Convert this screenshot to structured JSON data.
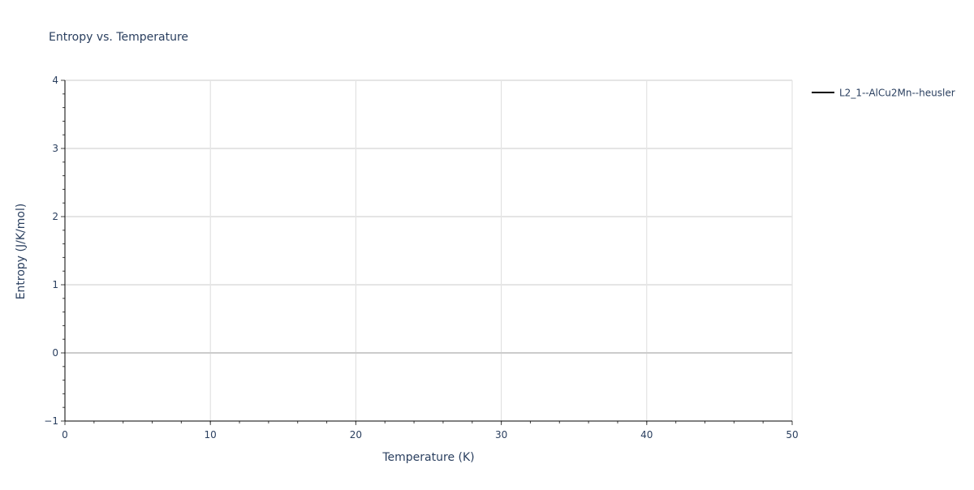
{
  "chart_data": {
    "type": "line",
    "title": "Entropy vs. Temperature",
    "xlabel": "Temperature (K)",
    "ylabel": "Entropy (J/K/mol)",
    "xlim": [
      0,
      50
    ],
    "ylim": [
      -1,
      4
    ],
    "x_ticks": [
      "0",
      "10",
      "20",
      "30",
      "40",
      "50"
    ],
    "y_ticks": [
      "−1",
      "0",
      "1",
      "2",
      "3",
      "4"
    ],
    "grid": true,
    "legend_position": "top-right",
    "series": [
      {
        "name": "L2_1--AlCu2Mn--heusler",
        "color": "#000000",
        "x": [],
        "y": []
      }
    ]
  }
}
